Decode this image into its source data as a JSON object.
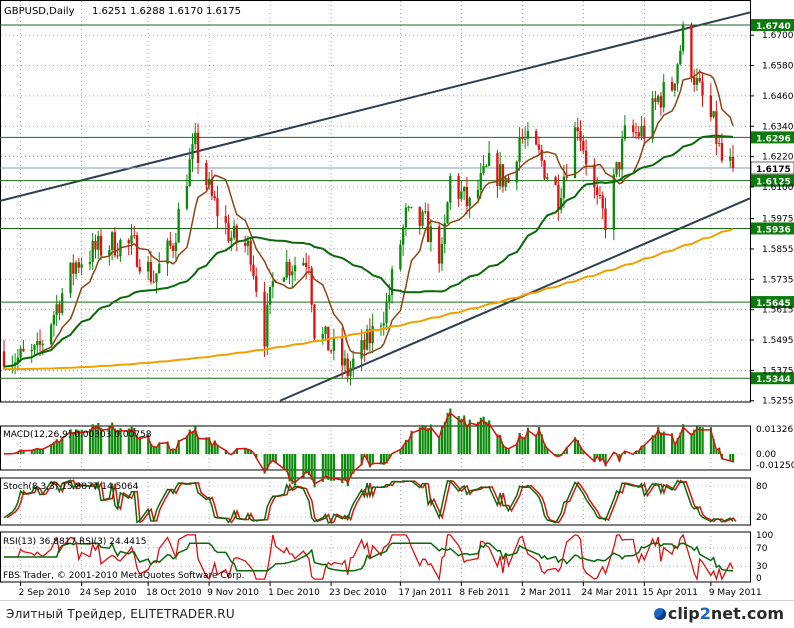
{
  "header": {
    "symbol": "GBPUSD,Daily",
    "ohlc": [
      "1.6251",
      "1.6288",
      "1.6170",
      "1.6175"
    ]
  },
  "colors": {
    "background": "#ffffff",
    "grid": "#8a8a8a",
    "bull_candle": "#0a8a0a",
    "bear_candle": "#e01010",
    "ma_fast": "#8b4513",
    "ma_mid": "#0a6a0a",
    "ma_slow": "#f0a000",
    "trendline": "#2f3f4f",
    "macd_hist": "#0a8a0a",
    "macd_signal": "#e01010",
    "rsi_fast": "#e01010",
    "rsi_slow": "#0a6a0a"
  },
  "price_axis": {
    "ticks": [
      "1.6700",
      "1.6580",
      "1.6460",
      "1.6340",
      "1.6220",
      "1.6100",
      "1.5975",
      "1.5855",
      "1.5735",
      "1.5615",
      "1.5495",
      "1.5375",
      "1.5255"
    ],
    "levels": [
      {
        "label": "1.6740",
        "value": 1.674
      },
      {
        "label": "1.6296",
        "value": 1.6296
      },
      {
        "label": "1.6175",
        "value": 1.6175,
        "current": true
      },
      {
        "label": "1.6125",
        "value": 1.6125
      },
      {
        "label": "1.5936",
        "value": 1.5936
      },
      {
        "label": "1.5645",
        "value": 1.5645
      },
      {
        "label": "1.5344",
        "value": 1.5344
      }
    ]
  },
  "x_axis": {
    "labels": [
      "2 Sep 2010",
      "24 Sep 2010",
      "18 Oct 2010",
      "9 Nov 2010",
      "1 Dec 2010",
      "23 Dec 2010",
      "17 Jan 2011",
      "8 Feb 2011",
      "2 Mar 2011",
      "24 Mar 2011",
      "15 Apr 2011",
      "9 May 2011"
    ]
  },
  "indicators": {
    "macd": {
      "label": "MACD(12,26,9) 0.00303 0.00758",
      "ticks": [
        "0.01326",
        "0.00",
        "-0.01250"
      ]
    },
    "stoch": {
      "label": "Stoch(8,3,3) 15.8877 14.5064",
      "ticks": [
        "80",
        "20"
      ]
    },
    "rsi": {
      "label": "RSI(13) 36.8817 RSI(3) 24.4415",
      "ticks": [
        "100",
        "70",
        "30",
        "0"
      ]
    }
  },
  "watermark": "FBS Trader, © 2001-2010 MetaQuotes Software Corp.",
  "footer": {
    "caption": "Элитный Трейдер, ELITETRADER.RU",
    "logo_prefix": "clip",
    "logo_accent": "2",
    "logo_suffix": "net",
    "logo_tld": ".com"
  },
  "chart_data": {
    "type": "candlestick",
    "timeframe": "Daily",
    "ylim": [
      1.525,
      1.676
    ],
    "anchors": [
      {
        "date": "2010-08-27",
        "price": 1.545
      },
      {
        "date": "2010-09-01",
        "price": 1.542
      },
      {
        "date": "2010-09-08",
        "price": 1.544
      },
      {
        "date": "2010-09-15",
        "price": 1.563
      },
      {
        "date": "2010-09-22",
        "price": 1.58
      },
      {
        "date": "2010-09-29",
        "price": 1.585
      },
      {
        "date": "2010-10-06",
        "price": 1.588
      },
      {
        "date": "2010-10-13",
        "price": 1.586
      },
      {
        "date": "2010-10-20",
        "price": 1.574
      },
      {
        "date": "2010-10-27",
        "price": 1.588
      },
      {
        "date": "2010-11-01",
        "price": 1.615
      },
      {
        "date": "2010-11-04",
        "price": 1.626
      },
      {
        "date": "2010-11-10",
        "price": 1.605
      },
      {
        "date": "2010-11-17",
        "price": 1.59
      },
      {
        "date": "2010-11-24",
        "price": 1.585
      },
      {
        "date": "2010-11-29",
        "price": 1.552
      },
      {
        "date": "2010-12-03",
        "price": 1.578
      },
      {
        "date": "2010-12-10",
        "price": 1.58
      },
      {
        "date": "2010-12-15",
        "price": 1.582
      },
      {
        "date": "2010-12-17",
        "price": 1.554
      },
      {
        "date": "2010-12-24",
        "price": 1.545
      },
      {
        "date": "2010-12-29",
        "price": 1.537
      },
      {
        "date": "2011-01-05",
        "price": 1.548
      },
      {
        "date": "2011-01-12",
        "price": 1.563
      },
      {
        "date": "2011-01-19",
        "price": 1.598
      },
      {
        "date": "2011-01-26",
        "price": 1.595
      },
      {
        "date": "2011-02-01",
        "price": 1.582
      },
      {
        "date": "2011-02-04",
        "price": 1.613
      },
      {
        "date": "2011-02-11",
        "price": 1.602
      },
      {
        "date": "2011-02-18",
        "price": 1.618
      },
      {
        "date": "2011-02-25",
        "price": 1.612
      },
      {
        "date": "2011-03-01",
        "price": 1.63
      },
      {
        "date": "2011-03-08",
        "price": 1.622
      },
      {
        "date": "2011-03-15",
        "price": 1.607
      },
      {
        "date": "2011-03-22",
        "price": 1.636
      },
      {
        "date": "2011-03-29",
        "price": 1.603
      },
      {
        "date": "2011-04-01",
        "price": 1.597
      },
      {
        "date": "2011-04-08",
        "price": 1.63
      },
      {
        "date": "2011-04-15",
        "price": 1.632
      },
      {
        "date": "2011-04-20",
        "price": 1.645
      },
      {
        "date": "2011-04-25",
        "price": 1.65
      },
      {
        "date": "2011-04-29",
        "price": 1.67
      },
      {
        "date": "2011-05-04",
        "price": 1.65
      },
      {
        "date": "2011-05-10",
        "price": 1.634
      },
      {
        "date": "2011-05-13",
        "price": 1.62
      },
      {
        "date": "2011-05-17",
        "price": 1.6175
      }
    ]
  }
}
